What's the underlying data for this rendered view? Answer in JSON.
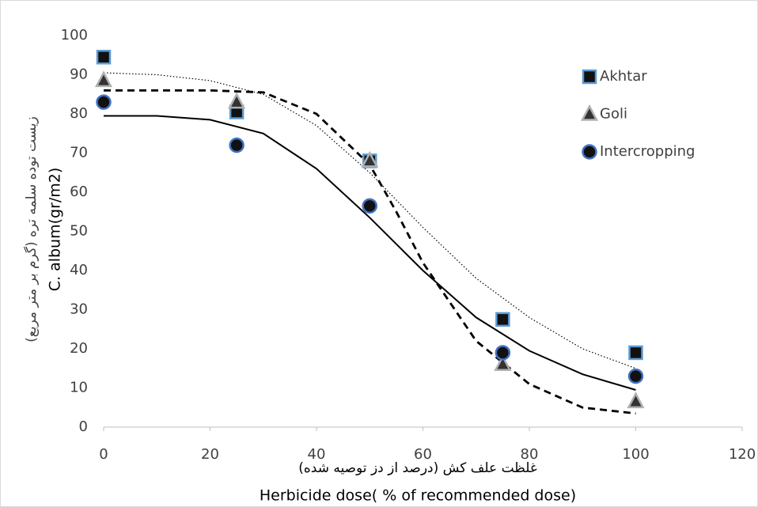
{
  "chart_data": {
    "type": "scatter",
    "y_label": [
      "زیست توده سلمه تره (گرم بر متر مربع)",
      "C. album(gr/m2)"
    ],
    "x_label": [
      "غلظت علف کش (درصد از دز توصیه شده)",
      "Herbicide dose( % of recommended dose)"
    ],
    "xlim": [
      0,
      120
    ],
    "xticks": [
      0,
      20,
      40,
      60,
      80,
      100,
      120
    ],
    "ylim": [
      0,
      100
    ],
    "yticks": [
      0,
      10,
      20,
      30,
      40,
      50,
      60,
      70,
      80,
      90,
      100
    ],
    "grid": false,
    "legend": "right",
    "series": [
      {
        "name": "Akhtar",
        "marker": "square",
        "color": "#111111",
        "edge": "#5b9bd5",
        "x": [
          0,
          25,
          50,
          75,
          100
        ],
        "values": [
          94.5,
          80.5,
          68,
          27.5,
          19
        ],
        "fit": {
          "style": "dotted",
          "x": [
            0,
            10,
            20,
            30,
            40,
            50,
            60,
            70,
            80,
            90,
            100
          ],
          "values": [
            90.5,
            90,
            88.5,
            85,
            77,
            65,
            51,
            38,
            28,
            20,
            15
          ]
        }
      },
      {
        "name": "Goli",
        "marker": "triangle",
        "color": "#333333",
        "edge": "#b0b0b0",
        "x": [
          0,
          25,
          50,
          75,
          100
        ],
        "values": [
          88.5,
          83,
          68,
          16,
          6.5
        ],
        "fit": {
          "style": "dashed",
          "x": [
            0,
            10,
            20,
            30,
            40,
            50,
            55,
            60,
            70,
            80,
            90,
            100
          ],
          "values": [
            86,
            86,
            86,
            85.5,
            80,
            67,
            55,
            42,
            22,
            11,
            5,
            3.5
          ]
        }
      },
      {
        "name": "Intercropping",
        "marker": "circle",
        "color": "#111111",
        "edge": "#4472c4",
        "x": [
          0,
          25,
          50,
          75,
          100
        ],
        "values": [
          83,
          72,
          56.5,
          19,
          13
        ],
        "fit": {
          "style": "solid",
          "x": [
            0,
            10,
            20,
            30,
            40,
            50,
            60,
            70,
            80,
            90,
            100
          ],
          "values": [
            79.5,
            79.5,
            78.5,
            75,
            66,
            53.5,
            40,
            28,
            19.5,
            13.5,
            9.5
          ]
        }
      }
    ]
  }
}
